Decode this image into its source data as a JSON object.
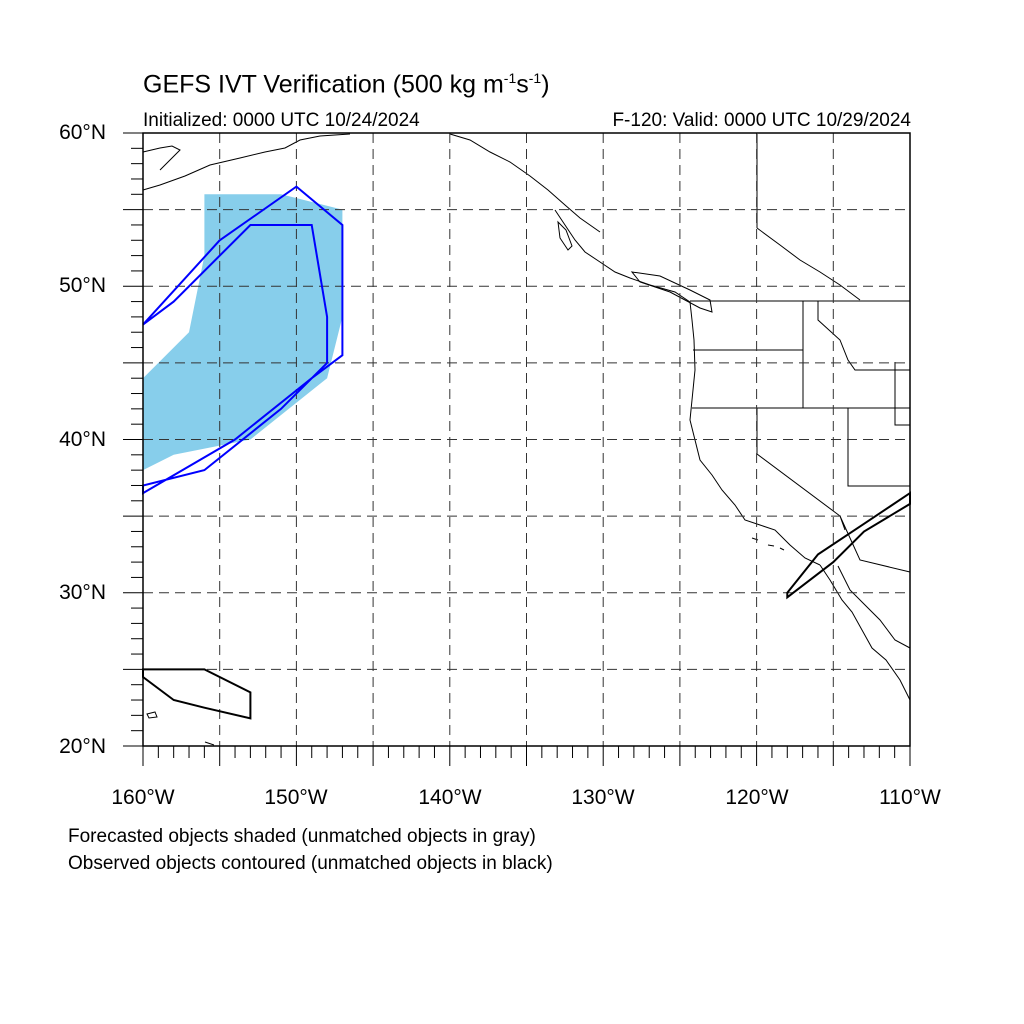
{
  "header": {
    "title_main": "GEFS IVT Verification (500 kg m",
    "title_exp1": "-1",
    "title_mid": "s",
    "title_exp2": "-1",
    "title_end": ")",
    "initialized": "Initialized: 0000 UTC 10/24/2024",
    "valid": "F-120: Valid: 0000 UTC 10/29/2024"
  },
  "map": {
    "projection": "cylindrical-equidistant",
    "lon_range": [
      -160,
      -110
    ],
    "lat_range": [
      20,
      60
    ],
    "lat_labels": [
      "20°N",
      "30°N",
      "40°N",
      "50°N",
      "60°N"
    ],
    "lon_labels": [
      "160°W",
      "150°W",
      "140°W",
      "130°W",
      "120°W",
      "110°W"
    ],
    "grid": "dashed every 5 degrees",
    "forecast_color": "#87ceeb",
    "observed_matched_color": "#0000ff",
    "observed_unmatched_color": "#000000",
    "forecast_object": [
      [
        -156,
        56
      ],
      [
        -151,
        56
      ],
      [
        -147,
        55
      ],
      [
        -147,
        48
      ],
      [
        -148,
        44
      ],
      [
        -153,
        40
      ],
      [
        -158,
        39
      ],
      [
        -160,
        38
      ],
      [
        -160,
        44
      ],
      [
        -157,
        47
      ],
      [
        -156,
        52
      ]
    ],
    "observed_matched_object": [
      [
        -155,
        53
      ],
      [
        -150,
        56.5
      ],
      [
        -147,
        54
      ],
      [
        -147,
        45.5
      ],
      [
        -149,
        44
      ],
      [
        -154,
        40
      ],
      [
        -160,
        36.5
      ],
      [
        -160,
        37
      ],
      [
        -156,
        38
      ],
      [
        -151,
        42
      ],
      [
        -148,
        45
      ],
      [
        -148,
        48
      ],
      [
        -149,
        54
      ],
      [
        -153,
        54
      ],
      [
        -158,
        49
      ],
      [
        -160,
        47.5
      ]
    ],
    "observed_unmatched_objects": [
      [
        [
          -160,
          25
        ],
        [
          -156,
          25
        ],
        [
          -153,
          23.5
        ],
        [
          -153,
          21.8
        ],
        [
          -156,
          22.5
        ],
        [
          -158,
          23
        ],
        [
          -160,
          24.5
        ]
      ],
      [
        [
          -118,
          30
        ],
        [
          -116,
          32.5
        ],
        [
          -113,
          34.5
        ],
        [
          -110,
          36.5
        ],
        [
          -110,
          35.8
        ],
        [
          -113,
          34
        ],
        [
          -115,
          32
        ],
        [
          -118,
          29.7
        ]
      ]
    ]
  },
  "captions": {
    "line1": "Forecasted objects shaded (unmatched objects in gray)",
    "line2": "Observed objects contoured (unmatched objects in black)"
  }
}
